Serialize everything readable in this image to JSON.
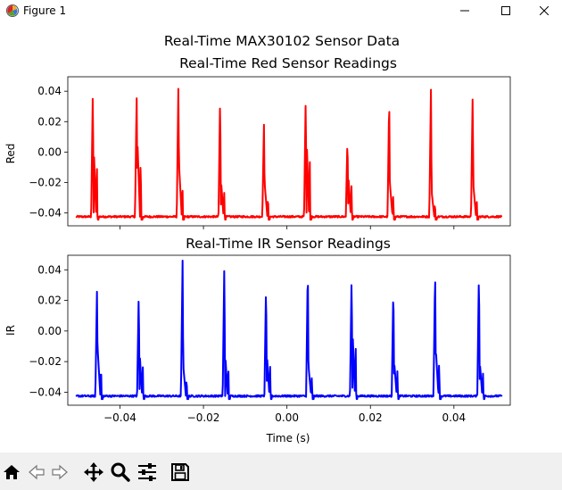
{
  "window": {
    "title": "Figure 1",
    "icons": [
      "matplotlib-icon",
      "minimize-icon",
      "maximize-icon",
      "close-icon"
    ]
  },
  "figure": {
    "suptitle": "Real-Time MAX30102 Sensor Data"
  },
  "chart_data": [
    {
      "type": "line",
      "title": "Real-Time Red Sensor Readings",
      "xlabel": "",
      "ylabel": "Red",
      "xlim": [
        -0.0525,
        0.0535
      ],
      "ylim": [
        -0.0485,
        0.0495
      ],
      "yticks": [
        -0.04,
        -0.02,
        0.0,
        0.02,
        0.04
      ],
      "ytick_labels": [
        "−0.04",
        "−0.02",
        "0.00",
        "0.02",
        "0.04"
      ],
      "xticks": [
        -0.04,
        -0.02,
        0.0,
        0.02,
        0.04
      ],
      "xtick_labels": [],
      "grid": false,
      "color": "#ff0000",
      "baseline": -0.0425,
      "peaks": [
        {
          "x": -0.0465,
          "y": 0.042,
          "shoulder": 0.005
        },
        {
          "x": -0.036,
          "y": 0.038,
          "shoulder": 0.006
        },
        {
          "x": -0.026,
          "y": 0.046,
          "shoulder": -0.011
        },
        {
          "x": -0.016,
          "y": 0.038,
          "shoulder": -0.018
        },
        {
          "x": -0.0055,
          "y": 0.019,
          "shoulder": -0.022
        },
        {
          "x": 0.0045,
          "y": 0.037,
          "shoulder": 0.011
        },
        {
          "x": 0.0145,
          "y": 0.01,
          "shoulder": -0.015
        },
        {
          "x": 0.0245,
          "y": 0.037,
          "shoulder": -0.022
        },
        {
          "x": 0.0345,
          "y": 0.041,
          "shoulder": -0.027
        },
        {
          "x": 0.0445,
          "y": 0.04,
          "shoulder": -0.023
        }
      ]
    },
    {
      "type": "line",
      "title": "Real-Time IR Sensor Readings",
      "xlabel": "Time (s)",
      "ylabel": "IR",
      "xlim": [
        -0.0525,
        0.0535
      ],
      "ylim": [
        -0.0485,
        0.0495
      ],
      "yticks": [
        -0.04,
        -0.02,
        0.0,
        0.02,
        0.04
      ],
      "ytick_labels": [
        "−0.04",
        "−0.02",
        "0.00",
        "0.02",
        "0.04"
      ],
      "xticks": [
        -0.04,
        -0.02,
        0.0,
        0.02,
        0.04
      ],
      "xtick_labels": [
        "−0.04",
        "−0.02",
        "0.00",
        "0.02",
        "0.04"
      ],
      "grid": false,
      "color": "#0000ff",
      "baseline": -0.0425,
      "peaks": [
        {
          "x": -0.0455,
          "y": 0.028,
          "shoulder": -0.014
        },
        {
          "x": -0.0355,
          "y": 0.026,
          "shoulder": -0.013
        },
        {
          "x": -0.025,
          "y": 0.046,
          "shoulder": -0.024
        },
        {
          "x": -0.015,
          "y": 0.045,
          "shoulder": -0.014
        },
        {
          "x": -0.005,
          "y": 0.032,
          "shoulder": -0.015
        },
        {
          "x": 0.005,
          "y": 0.044,
          "shoulder": -0.024
        },
        {
          "x": 0.0155,
          "y": 0.038,
          "shoulder": 0.002
        },
        {
          "x": 0.0255,
          "y": 0.031,
          "shoulder": -0.02
        },
        {
          "x": 0.0355,
          "y": 0.04,
          "shoulder": -0.013
        },
        {
          "x": 0.046,
          "y": 0.041,
          "shoulder": -0.02
        }
      ]
    }
  ],
  "toolbar": {
    "tools": [
      {
        "name": "home-icon"
      },
      {
        "name": "back-icon"
      },
      {
        "name": "forward-icon"
      },
      {
        "name": "pan-icon"
      },
      {
        "name": "zoom-icon"
      },
      {
        "name": "configure-subplots-icon"
      },
      {
        "name": "save-icon"
      }
    ]
  }
}
